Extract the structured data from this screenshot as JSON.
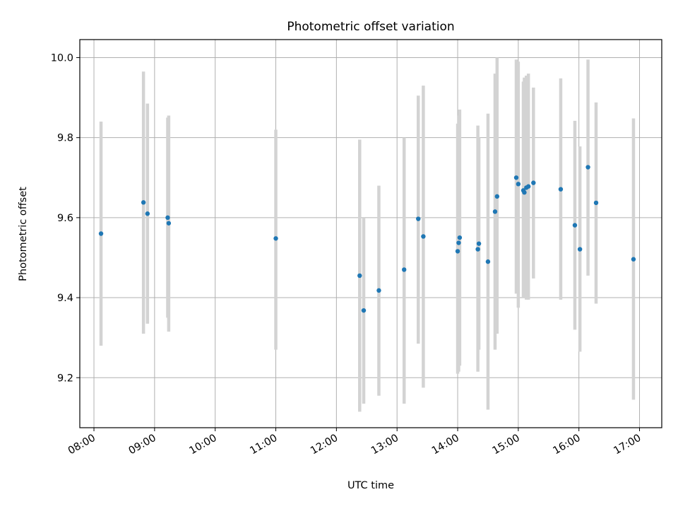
{
  "chart_data": {
    "type": "scatter",
    "title": "Photometric offset variation",
    "xlabel": "UTC time",
    "ylabel": "Photometric offset",
    "xlim": [
      "07:46",
      "17:22"
    ],
    "ylim": [
      9.075,
      10.045
    ],
    "x_ticks": [
      "08:00",
      "09:00",
      "10:00",
      "11:00",
      "12:00",
      "13:00",
      "14:00",
      "15:00",
      "16:00",
      "17:00"
    ],
    "y_ticks": [
      9.2,
      9.4,
      9.6,
      9.8,
      10.0
    ],
    "grid": true,
    "colors": {
      "point": "#1f77b4",
      "errorbar": "#d3d3d3",
      "grid": "#b0b0b0"
    },
    "points": [
      {
        "t": "08:07",
        "y": 9.56,
        "ylo": 9.28,
        "yhi": 9.84
      },
      {
        "t": "08:49",
        "y": 9.638,
        "ylo": 9.31,
        "yhi": 9.965
      },
      {
        "t": "08:53",
        "y": 9.61,
        "ylo": 9.335,
        "yhi": 9.885
      },
      {
        "t": "09:13",
        "y": 9.6,
        "ylo": 9.35,
        "yhi": 9.85
      },
      {
        "t": "09:14",
        "y": 9.586,
        "ylo": 9.315,
        "yhi": 9.855
      },
      {
        "t": "11:00",
        "y": 9.548,
        "ylo": 9.27,
        "yhi": 9.82
      },
      {
        "t": "12:23",
        "y": 9.455,
        "ylo": 9.115,
        "yhi": 9.795
      },
      {
        "t": "12:27",
        "y": 9.368,
        "ylo": 9.135,
        "yhi": 9.6
      },
      {
        "t": "12:42",
        "y": 9.418,
        "ylo": 9.155,
        "yhi": 9.68
      },
      {
        "t": "13:07",
        "y": 9.47,
        "ylo": 9.135,
        "yhi": 9.8
      },
      {
        "t": "13:21",
        "y": 9.597,
        "ylo": 9.285,
        "yhi": 9.905
      },
      {
        "t": "13:26",
        "y": 9.553,
        "ylo": 9.175,
        "yhi": 9.93
      },
      {
        "t": "14:00",
        "y": 9.516,
        "ylo": 9.21,
        "yhi": 9.835
      },
      {
        "t": "14:01",
        "y": 9.537,
        "ylo": 9.215,
        "yhi": 9.855
      },
      {
        "t": "14:02",
        "y": 9.55,
        "ylo": 9.23,
        "yhi": 9.87
      },
      {
        "t": "14:20",
        "y": 9.521,
        "ylo": 9.215,
        "yhi": 9.83
      },
      {
        "t": "14:21",
        "y": 9.535,
        "ylo": 9.27,
        "yhi": 9.8
      },
      {
        "t": "14:30",
        "y": 9.49,
        "ylo": 9.12,
        "yhi": 9.86
      },
      {
        "t": "14:37",
        "y": 9.615,
        "ylo": 9.27,
        "yhi": 9.96
      },
      {
        "t": "14:39",
        "y": 9.653,
        "ylo": 9.31,
        "yhi": 10.0
      },
      {
        "t": "14:58",
        "y": 9.7,
        "ylo": 9.41,
        "yhi": 9.995
      },
      {
        "t": "15:00",
        "y": 9.684,
        "ylo": 9.375,
        "yhi": 9.99
      },
      {
        "t": "15:05",
        "y": 9.668,
        "ylo": 9.4,
        "yhi": 9.94
      },
      {
        "t": "15:06",
        "y": 9.663,
        "ylo": 9.4,
        "yhi": 9.95
      },
      {
        "t": "15:08",
        "y": 9.675,
        "ylo": 9.395,
        "yhi": 9.955
      },
      {
        "t": "15:10",
        "y": 9.678,
        "ylo": 9.395,
        "yhi": 9.96
      },
      {
        "t": "15:15",
        "y": 9.687,
        "ylo": 9.448,
        "yhi": 9.925
      },
      {
        "t": "15:42",
        "y": 9.671,
        "ylo": 9.395,
        "yhi": 9.948
      },
      {
        "t": "15:56",
        "y": 9.581,
        "ylo": 9.32,
        "yhi": 9.842
      },
      {
        "t": "16:01",
        "y": 9.521,
        "ylo": 9.265,
        "yhi": 9.778
      },
      {
        "t": "16:09",
        "y": 9.726,
        "ylo": 9.455,
        "yhi": 9.995
      },
      {
        "t": "16:17",
        "y": 9.637,
        "ylo": 9.385,
        "yhi": 9.888
      },
      {
        "t": "16:54",
        "y": 9.496,
        "ylo": 9.145,
        "yhi": 9.848
      }
    ]
  }
}
